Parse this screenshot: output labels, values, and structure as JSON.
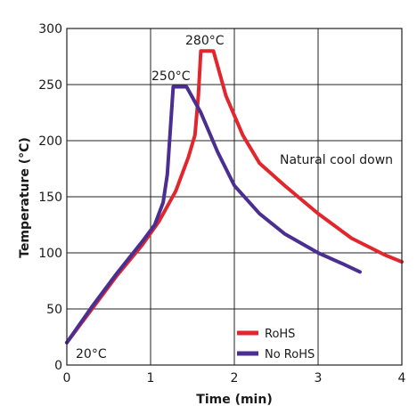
{
  "chart_data": {
    "type": "line",
    "title": "",
    "xlabel": "Time (min)",
    "ylabel": "Temperature (°C)",
    "xlim": [
      0,
      4
    ],
    "ylim": [
      0,
      300
    ],
    "xticks": [
      "0",
      "1",
      "2",
      "3",
      "4"
    ],
    "yticks": [
      "0",
      "50",
      "100",
      "150",
      "200",
      "250",
      "300"
    ],
    "grid": true,
    "legend_position": "bottom-right",
    "series": [
      {
        "name": "RoHS",
        "color": "#e1262d",
        "x": [
          0,
          0.3,
          0.6,
          0.9,
          1.1,
          1.3,
          1.45,
          1.53,
          1.57,
          1.6,
          1.75,
          1.9,
          2.1,
          2.3,
          2.6,
          3.0,
          3.4,
          3.8,
          4.0
        ],
        "y": [
          20,
          50,
          80,
          107,
          128,
          155,
          185,
          205,
          240,
          280,
          280,
          240,
          205,
          180,
          160,
          135,
          113,
          98,
          92
        ]
      },
      {
        "name": "No RoHS",
        "color": "#4b2e91",
        "x": [
          0,
          0.3,
          0.6,
          0.9,
          1.05,
          1.15,
          1.2,
          1.24,
          1.27,
          1.43,
          1.6,
          1.8,
          2.0,
          2.3,
          2.6,
          3.0,
          3.3,
          3.5
        ],
        "y": [
          20,
          52,
          82,
          110,
          125,
          145,
          170,
          215,
          248,
          248,
          225,
          190,
          160,
          135,
          117,
          100,
          90,
          83
        ]
      }
    ],
    "annotations": [
      {
        "text": "280°C",
        "x": 1.6,
        "y": 285
      },
      {
        "text": "250°C",
        "x": 1.25,
        "y": 253
      },
      {
        "text": "20°C",
        "x": 0.1,
        "y": 8
      },
      {
        "text": "Natural cool down",
        "x": 2.75,
        "y": 193
      }
    ]
  }
}
